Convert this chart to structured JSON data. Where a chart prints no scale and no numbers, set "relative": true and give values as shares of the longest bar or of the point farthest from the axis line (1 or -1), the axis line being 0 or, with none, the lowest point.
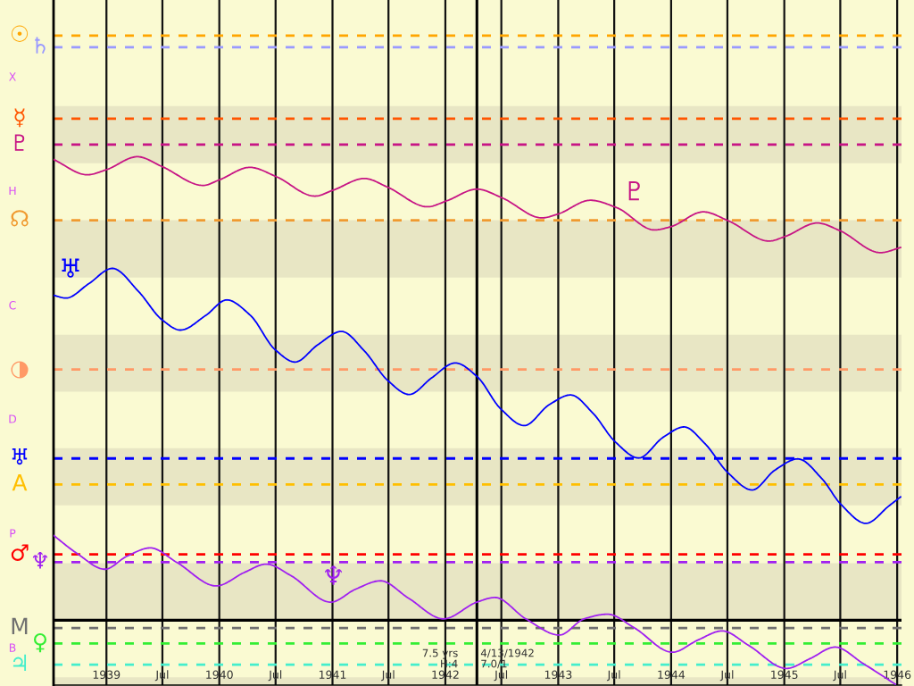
{
  "chart_data": {
    "type": "line",
    "relative": true,
    "xlim": [
      "1938-07-14",
      "1946-01-15"
    ],
    "xticks": [
      {
        "value": "1939-01-01",
        "label": "1939"
      },
      {
        "value": "1939-07-01",
        "label": "Jul"
      },
      {
        "value": "1940-01-01",
        "label": "1940"
      },
      {
        "value": "1940-07-01",
        "label": "Jul"
      },
      {
        "value": "1941-01-01",
        "label": "1941"
      },
      {
        "value": "1941-07-01",
        "label": "Jul"
      },
      {
        "value": "1942-01-01",
        "label": "1942"
      },
      {
        "value": "1942-07-01",
        "label": "Jul"
      },
      {
        "value": "1943-01-01",
        "label": "1943"
      },
      {
        "value": "1943-07-01",
        "label": "Jul"
      },
      {
        "value": "1944-01-01",
        "label": "1944"
      },
      {
        "value": "1944-07-01",
        "label": "Jul"
      },
      {
        "value": "1945-01-01",
        "label": "1945"
      },
      {
        "value": "1945-07-01",
        "label": "Jul"
      },
      {
        "value": "1946-01-01",
        "label": "1946"
      }
    ],
    "grid": "x",
    "series": [
      {
        "name": "♇",
        "color": "#c71585",
        "x": [
          "1938-07-14",
          "1938-10-31",
          "1939-01-01",
          "1939-04-11",
          "1939-06-29",
          "1939-11-10",
          "1940-01-01",
          "1940-04-09",
          "1940-07-03",
          "1940-11-05",
          "1941-01-04",
          "1941-04-14",
          "1941-06-29",
          "1941-11-04",
          "1942-01-06",
          "1942-04-13",
          "1942-07-04",
          "1942-11-09",
          "1942-12-30",
          "1943-04-15",
          "1943-07-09",
          "1943-11-08",
          "1943-12-31",
          "1944-04-14",
          "1944-07-03",
          "1944-11-13",
          "1945-01-04",
          "1945-04-18",
          "1945-06-28",
          "1945-11-08",
          "1946-01-12"
        ],
        "values": [
          0.994,
          0.961,
          0.972,
          1.0,
          0.979,
          0.938,
          0.95,
          0.977,
          0.957,
          0.915,
          0.928,
          0.953,
          0.934,
          0.892,
          0.905,
          0.93,
          0.911,
          0.868,
          0.876,
          0.906,
          0.89,
          0.842,
          0.849,
          0.881,
          0.862,
          0.818,
          0.828,
          0.857,
          0.841,
          0.793,
          0.804
        ]
      },
      {
        "name": "♅",
        "color": "#0000ff",
        "x": [
          "1938-07-14",
          "1938-08-23",
          "1938-11-05",
          "1939-01-20",
          "1939-04-15",
          "1939-06-30",
          "1939-08-28",
          "1939-11-19",
          "1940-01-25",
          "1940-04-10",
          "1940-06-29",
          "1940-09-02",
          "1940-11-14",
          "1941-01-30",
          "1941-04-14",
          "1941-06-29",
          "1941-09-06",
          "1941-11-18",
          "1942-02-02",
          "1942-04-13",
          "1942-06-29",
          "1942-09-13",
          "1942-12-03",
          "1943-02-10",
          "1943-04-24",
          "1943-07-04",
          "1943-09-18",
          "1943-12-07",
          "1944-02-12",
          "1944-04-18",
          "1944-07-03",
          "1944-09-19",
          "1944-12-02",
          "1945-02-14",
          "1945-05-03",
          "1945-07-03",
          "1945-09-22",
          "1945-12-06",
          "1946-01-12"
        ],
        "values": [
          0.701,
          0.695,
          0.726,
          0.759,
          0.709,
          0.648,
          0.626,
          0.658,
          0.691,
          0.658,
          0.584,
          0.557,
          0.594,
          0.623,
          0.581,
          0.517,
          0.487,
          0.523,
          0.555,
          0.526,
          0.456,
          0.42,
          0.465,
          0.486,
          0.446,
          0.385,
          0.35,
          0.395,
          0.417,
          0.382,
          0.318,
          0.281,
          0.324,
          0.348,
          0.305,
          0.25,
          0.209,
          0.247,
          0.266
        ]
      },
      {
        "name": "♆",
        "color": "#a020f0",
        "x": [
          "1938-07-14",
          "1938-09-28",
          "1938-12-27",
          "1939-03-08",
          "1939-05-23",
          "1939-08-16",
          "1939-12-22",
          "1940-03-22",
          "1940-06-01",
          "1940-08-20",
          "1940-12-26",
          "1941-03-17",
          "1941-06-05",
          "1941-09-03",
          "1941-12-26",
          "1942-04-13",
          "1942-06-10",
          "1942-09-18",
          "1943-01-05",
          "1943-03-26",
          "1943-06-10",
          "1943-09-03",
          "1944-01-05",
          "1944-03-30",
          "1944-06-14",
          "1944-09-07",
          "1945-01-08",
          "1945-03-25",
          "1945-06-14",
          "1945-09-12",
          "1945-12-26"
        ],
        "values": [
          0.183,
          0.144,
          0.11,
          0.138,
          0.156,
          0.125,
          0.074,
          0.103,
          0.121,
          0.096,
          0.039,
          0.067,
          0.085,
          0.048,
          0.003,
          0.039,
          0.049,
          0.003,
          -0.032,
          0.003,
          0.013,
          -0.016,
          -0.069,
          -0.042,
          -0.023,
          -0.054,
          -0.104,
          -0.083,
          -0.058,
          -0.093,
          -0.138
        ]
      }
    ],
    "ref_lines": [
      {
        "axis": "x",
        "value": "1942-04-13",
        "label": "4/13/1942",
        "color": "#000000",
        "line_style": "solid"
      },
      {
        "axis": "y",
        "value": 1.261,
        "label": "☉",
        "color": "#ffa500",
        "line_style": "dashed"
      },
      {
        "axis": "y",
        "value": 1.236,
        "label": "♄",
        "color": "#9999ff",
        "line_style": "dashed"
      },
      {
        "axis": "y",
        "value": 1.082,
        "label": "☿",
        "color": "#ff5500",
        "line_style": "dashed"
      },
      {
        "axis": "y",
        "value": 1.026,
        "label": "♇",
        "color": "#c71585",
        "line_style": "dashed"
      },
      {
        "axis": "y",
        "value": 0.863,
        "label": "☊",
        "color": "#f09a30",
        "line_style": "dashed"
      },
      {
        "axis": "y",
        "value": 0.541,
        "label": "◑",
        "color": "#ff9966",
        "line_style": "dashed"
      },
      {
        "axis": "y",
        "value": 0.349,
        "label": "♅",
        "color": "#0000ff",
        "line_style": "dashed"
      },
      {
        "axis": "y",
        "value": 0.293,
        "label": "A",
        "color": "#ffbf00",
        "line_style": "dashed"
      },
      {
        "axis": "y",
        "value": 0.142,
        "label": "♂",
        "color": "#ff0000",
        "line_style": "dashed"
      },
      {
        "axis": "y",
        "value": 0.125,
        "label": "♆",
        "color": "#a020f0",
        "line_style": "dashed"
      },
      {
        "axis": "y",
        "value": -0.017,
        "label": "M",
        "color": "#707070",
        "line_style": "dashed"
      },
      {
        "axis": "y",
        "value": -0.05,
        "label": "♀",
        "color": "#33ee33",
        "line_style": "dashed"
      },
      {
        "axis": "y",
        "value": -0.096,
        "label": "♃",
        "color": "#44eecc",
        "line_style": "dashed"
      }
    ],
    "bands": [
      {
        "axis": "y",
        "from": 0.986,
        "to": 1.109,
        "color": "#e8e6c4"
      },
      {
        "axis": "y",
        "from": 0.739,
        "to": 0.863,
        "color": "#e8e6c4"
      },
      {
        "axis": "y",
        "from": 0.493,
        "to": 0.616,
        "color": "#e8e6c4"
      },
      {
        "axis": "y",
        "from": 0.248,
        "to": 0.371,
        "color": "#e8e6c4"
      },
      {
        "axis": "y",
        "from": 0,
        "to": 0.123,
        "color": "#e8e6c4"
      },
      {
        "axis": "y",
        "from": -0.14,
        "to": -0.123,
        "color": "#e8e6c4"
      }
    ],
    "annotations": [
      "X",
      "H",
      "C",
      "D",
      "P",
      "B",
      "7.5 yrs",
      "H:4",
      "7.0/1"
    ]
  }
}
